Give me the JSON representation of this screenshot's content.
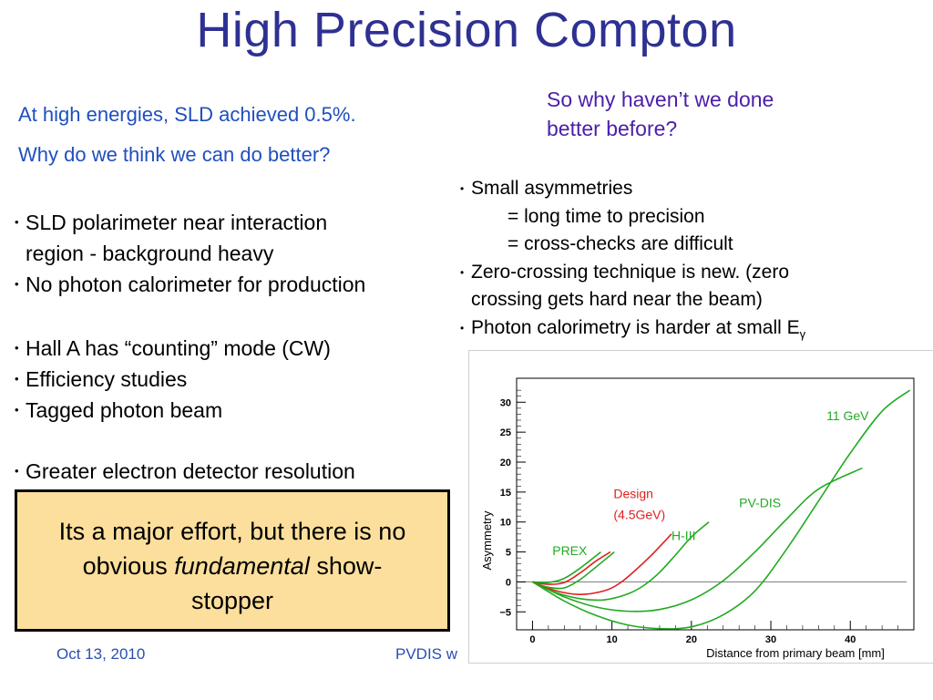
{
  "slide": {
    "title": "High Precision Compton",
    "left_intro": [
      "At high energies, SLD achieved 0.5%.",
      "Why do we think we can do better?"
    ],
    "right_question": [
      "So why haven’t we done",
      "better before?"
    ],
    "left_bullets_a": [
      {
        "lines": [
          "SLD polarimeter near interaction",
          "region - background heavy"
        ]
      },
      {
        "lines": [
          "No photon calorimeter for production"
        ]
      }
    ],
    "left_bullets_b": [
      {
        "lines": [
          "Hall A has “counting” mode (CW)"
        ]
      },
      {
        "lines": [
          "Efficiency studies"
        ]
      },
      {
        "lines": [
          "Tagged photon beam"
        ]
      }
    ],
    "left_bullet_c": " Greater electron detector resolution",
    "right_bullets": {
      "b1": "Small asymmetries",
      "b1_sub": [
        "= long time to precision",
        "= cross-checks are difficult"
      ],
      "b2": [
        "Zero-crossing technique is new.  (zero",
        "crossing gets hard near the beam)"
      ],
      "b3_text": "Photon calorimetry is harder at small E",
      "b3_sub": "γ"
    },
    "callout": {
      "line1": "Its a major effort, but there is no",
      "line2_pre": "obvious ",
      "line2_em": "fundamental",
      "line2_post": " show-",
      "line3": "stopper"
    },
    "footer": {
      "date": "Oct 13, 2010",
      "mid": "PVDIS w"
    }
  },
  "chart_data": {
    "type": "line",
    "xlabel": "Distance from primary beam [mm]",
    "ylabel": "Asymmetry",
    "xlim": [
      -2,
      48
    ],
    "ylim": [
      -8,
      34
    ],
    "xticks": [
      0,
      10,
      20,
      30,
      40
    ],
    "yticks": [
      -5,
      0,
      5,
      10,
      15,
      20,
      25,
      30
    ],
    "ytick_labels": [
      "−5",
      "0",
      "5",
      "10",
      "15",
      "20",
      "25",
      "30"
    ],
    "grid": false,
    "series": [
      {
        "name": "11 GeV",
        "color": "#22aa22",
        "x": [
          0,
          4,
          8,
          12,
          16,
          20,
          24,
          28,
          32,
          36,
          40,
          44,
          47.5
        ],
        "y": [
          0,
          -3.2,
          -5.6,
          -7.2,
          -7.8,
          -7.5,
          -5.5,
          -1.5,
          5.5,
          13.5,
          21.5,
          28.5,
          32
        ]
      },
      {
        "name": "PV-DIS",
        "color": "#22aa22",
        "x": [
          0,
          4,
          8,
          12,
          16,
          20,
          24,
          28,
          32,
          36,
          41.5
        ],
        "y": [
          0,
          -2.5,
          -4.2,
          -4.9,
          -4.6,
          -3.0,
          0.2,
          5.0,
          10.5,
          15.5,
          19
        ]
      },
      {
        "name": "H-III",
        "color": "#22aa22",
        "x": [
          0,
          3,
          6,
          9,
          12,
          14,
          16,
          18,
          20,
          22.2
        ],
        "y": [
          0,
          -1.8,
          -2.8,
          -3.0,
          -2.0,
          -0.6,
          1.6,
          4.5,
          7.5,
          10
        ]
      },
      {
        "name": "Design (4.5GeV)",
        "color": "#e02020",
        "x": [
          0,
          3,
          6,
          9,
          11,
          13,
          15,
          17.5
        ],
        "y": [
          0,
          -1.5,
          -2.1,
          -1.5,
          -0.2,
          2.0,
          4.5,
          8
        ]
      },
      {
        "name": "PREX",
        "color": "#22aa22",
        "x": [
          0,
          2,
          4,
          6,
          8,
          10.3
        ],
        "y": [
          0,
          -0.9,
          -1.0,
          0.4,
          2.5,
          5
        ]
      },
      {
        "name": "",
        "color": "#e02020",
        "x": [
          0,
          2,
          4,
          6,
          8,
          9.8
        ],
        "y": [
          0,
          -0.4,
          -0.1,
          1.5,
          3.5,
          5
        ]
      },
      {
        "name": "",
        "color": "#22aa22",
        "x": [
          0,
          2,
          4,
          6,
          8.6
        ],
        "y": [
          0,
          -0.1,
          0.6,
          2.3,
          5
        ]
      }
    ],
    "labels": [
      {
        "text": "11 GeV",
        "color": "#22aa22",
        "x": 37,
        "y": 27
      },
      {
        "text": "PV-DIS",
        "color": "#22aa22",
        "x": 26,
        "y": 12.5
      },
      {
        "text": "Design",
        "color": "#e02020",
        "x": 10.2,
        "y": 14
      },
      {
        "text": "(4.5GeV)",
        "color": "#e02020",
        "x": 10.2,
        "y": 10.5
      },
      {
        "text": "H-III",
        "color": "#22aa22",
        "x": 17.5,
        "y": 7
      },
      {
        "text": "PREX",
        "color": "#22aa22",
        "x": 2.5,
        "y": 4.5
      }
    ]
  }
}
